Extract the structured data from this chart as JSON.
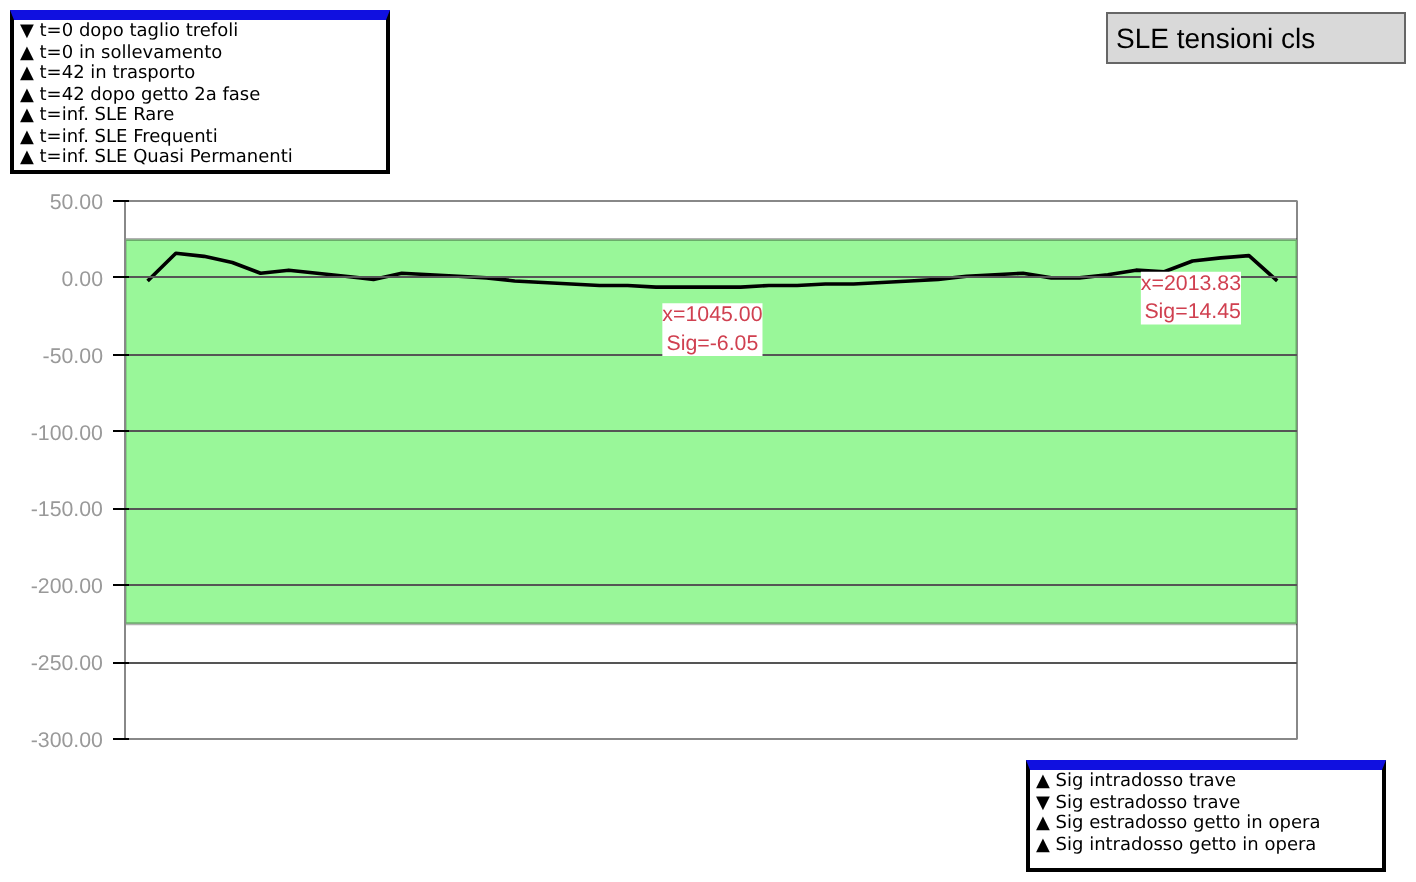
{
  "chart_data": {
    "type": "line",
    "title": "SLE tensioni cls",
    "categories": [
      null,
      null,
      null,
      null,
      null,
      null,
      null,
      null,
      null,
      null,
      null,
      null,
      null,
      null,
      null,
      null,
      null,
      null,
      null,
      null,
      null,
      null,
      null,
      null,
      null,
      null,
      null,
      null,
      null,
      null,
      null,
      null,
      null,
      null,
      null,
      null,
      null,
      null,
      null,
      null,
      null
    ],
    "series": [
      {
        "color": "#000000",
        "values": [
          -2,
          16,
          14,
          10,
          3,
          5,
          3,
          1,
          -1,
          3,
          2,
          1,
          0,
          -2,
          -3,
          -4,
          -5,
          -5,
          -6,
          -6,
          -6.05,
          -6,
          -5,
          -5,
          -4,
          -4,
          -3,
          -2,
          -1,
          1,
          2,
          3,
          0,
          0,
          2,
          5,
          4,
          11,
          13,
          14.45,
          -2
        ]
      }
    ],
    "ylim": [
      -300,
      50
    ],
    "yticks": [
      {
        "value": 50,
        "label": "50.00"
      },
      {
        "value": 0,
        "label": "0.00"
      },
      {
        "value": -50,
        "label": "-50.00"
      },
      {
        "value": -100,
        "label": "-100.00"
      },
      {
        "value": -150,
        "label": "-150.00"
      },
      {
        "value": -200,
        "label": "-200.00"
      },
      {
        "value": -250,
        "label": "-250.00"
      },
      {
        "value": -300,
        "label": "-300.00"
      }
    ],
    "tick_labels": "y",
    "grid": "y",
    "line_style": "solid",
    "bands": [
      {
        "axis": "y",
        "from": -225,
        "to": 25,
        "color": "#99f799"
      }
    ],
    "annotations": [
      "▼ t=0 dopo taglio trefoli\n▲ t=0 in sollevamento\n▲ t=42 in trasporto\n▲ t=42 dopo getto 2a fase\n▲ t=inf. SLE Rare\n▲ t=inf. SLE Frequenti\n▲ t=inf. SLE Quasi Permanenti",
      "▲ Sig intradosso trave\n▼ Sig estradosso trave\n▲ Sig estradosso getto in opera\n▲ Sig intradosso getto in opera",
      {
        "text": "x=1045.00\nSig=-6.05",
        "y": -6.05
      },
      {
        "text": "x=2013.83\nSig=14.45",
        "y": 14.45
      }
    ]
  }
}
